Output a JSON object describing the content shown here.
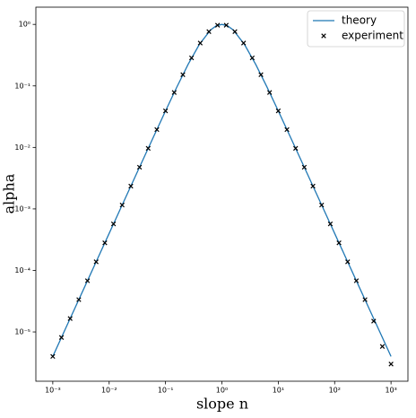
{
  "chart_data": {
    "type": "line_scatter",
    "xlabel": "slope n",
    "ylabel": "alpha",
    "xscale": "log",
    "yscale": "log",
    "xlim": [
      0.000501,
      1995
    ],
    "ylim": [
      1.58e-06,
      1.905
    ],
    "xticks": [
      {
        "value": 0.001,
        "label": "10⁻³"
      },
      {
        "value": 0.01,
        "label": "10⁻²"
      },
      {
        "value": 0.1,
        "label": "10⁻¹"
      },
      {
        "value": 1,
        "label": "10⁰"
      },
      {
        "value": 10,
        "label": "10¹"
      },
      {
        "value": 100,
        "label": "10²"
      },
      {
        "value": 1000,
        "label": "10³"
      }
    ],
    "yticks": [
      {
        "value": 1e-05,
        "label": "10⁻⁵"
      },
      {
        "value": 0.0001,
        "label": "10⁻⁴"
      },
      {
        "value": 0.001,
        "label": "10⁻³"
      },
      {
        "value": 0.01,
        "label": "10⁻²"
      },
      {
        "value": 0.1,
        "label": "10⁻¹"
      },
      {
        "value": 1,
        "label": "10⁰"
      }
    ],
    "legend": "upper right",
    "series": [
      {
        "name": "theory",
        "kind": "line",
        "color": "#1f77b4",
        "x": [
          0.001,
          0.001585,
          0.002512,
          0.003981,
          0.00631,
          0.01,
          0.01585,
          0.02512,
          0.03981,
          0.0631,
          0.1,
          0.1585,
          0.2512,
          0.3981,
          0.631,
          0.7943,
          1,
          1.2589,
          1.585,
          2.512,
          3.981,
          6.31,
          10,
          15.85,
          25.12,
          39.81,
          63.1,
          100,
          158.5,
          251.2,
          398.1,
          631,
          1000
        ],
        "values": [
          4e-06,
          1.0047e-05,
          2.524e-05,
          6.34e-05,
          0.0001592,
          0.0003999,
          0.001004,
          0.002521,
          0.00632,
          0.0158,
          0.03921,
          0.09561,
          0.2233,
          0.4724,
          0.8146,
          0.9489,
          1,
          0.9489,
          0.8146,
          0.4724,
          0.2233,
          0.09561,
          0.03921,
          0.0158,
          0.00632,
          0.002521,
          0.001004,
          0.0003999,
          0.0001592,
          6.34e-05,
          2.524e-05,
          1.0047e-05,
          4e-06
        ]
      },
      {
        "name": "experiment",
        "kind": "scatter",
        "color": "#000000",
        "x": [
          0.001,
          0.001425,
          0.002031,
          0.002894,
          0.004125,
          0.005878,
          0.008377,
          0.01194,
          0.01701,
          0.02424,
          0.03455,
          0.04924,
          0.07017,
          0.1,
          0.1425,
          0.2031,
          0.2894,
          0.4125,
          0.5878,
          0.8377,
          1.1937,
          1.7012,
          2.4245,
          3.4551,
          4.9239,
          7.017,
          10,
          14.251,
          20.309,
          28.942,
          41.246,
          58.78,
          83.77,
          119.38,
          170.13,
          242.45,
          345.5,
          492.4,
          701.7,
          1000
        ],
        "values": [
          4e-06,
          8.12e-06,
          1.65e-05,
          3.351e-05,
          6.804e-05,
          0.0001382,
          0.0002806,
          0.0005698,
          0.001157,
          0.002348,
          0.004764,
          0.009651,
          0.0195,
          0.03921,
          0.07803,
          0.1522,
          0.2853,
          0.497,
          0.7634,
          0.9693,
          0.9693,
          0.7634,
          0.497,
          0.2853,
          0.1522,
          0.07803,
          0.03921,
          0.0195,
          0.009651,
          0.004764,
          0.002348,
          0.001157,
          0.0005698,
          0.0002806,
          0.0001382,
          6.804e-05,
          3.351e-05,
          1.5e-05,
          5.8e-06,
          3e-06
        ]
      }
    ]
  }
}
